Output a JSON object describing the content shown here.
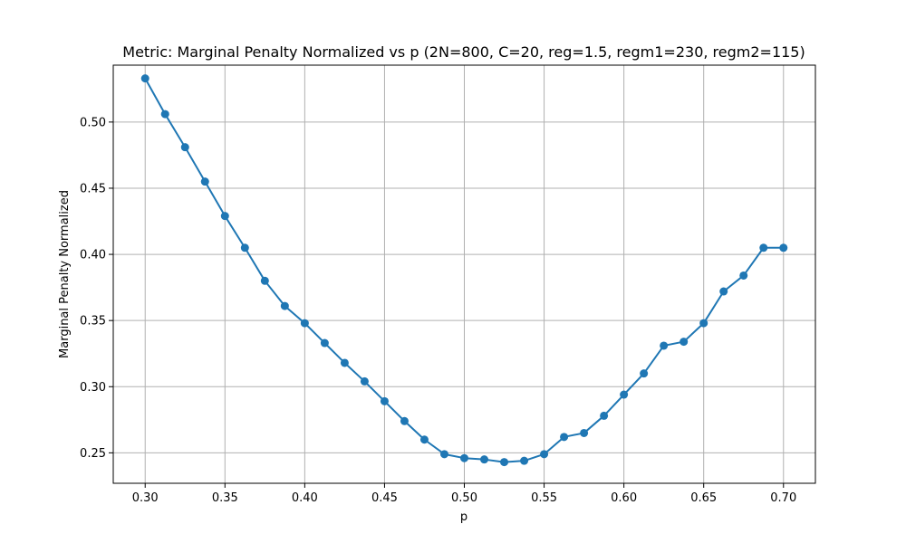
{
  "chart_data": {
    "type": "line",
    "title": "Metric: Marginal Penalty Normalized vs p (2N=800, C=20, reg=1.5, regm1=230, regm2=115)",
    "xlabel": "p",
    "ylabel": "Marginal Penalty Normalized",
    "xlim": [
      0.28,
      0.72
    ],
    "ylim": [
      0.227,
      0.543
    ],
    "xticks": [
      0.3,
      0.35,
      0.4,
      0.45,
      0.5,
      0.55,
      0.6,
      0.65,
      0.7
    ],
    "yticks": [
      0.25,
      0.3,
      0.35,
      0.4,
      0.45,
      0.5
    ],
    "xtick_labels": [
      "0.30",
      "0.35",
      "0.40",
      "0.45",
      "0.50",
      "0.55",
      "0.60",
      "0.65",
      "0.70"
    ],
    "ytick_labels": [
      "0.25",
      "0.30",
      "0.35",
      "0.40",
      "0.45",
      "0.50"
    ],
    "grid": true,
    "series": [
      {
        "name": "Marginal Penalty Normalized",
        "color": "#1f77b4",
        "marker": "circle",
        "x": [
          0.3,
          0.3125,
          0.325,
          0.3375,
          0.35,
          0.3625,
          0.375,
          0.3875,
          0.4,
          0.4125,
          0.425,
          0.4375,
          0.45,
          0.4625,
          0.475,
          0.4875,
          0.5,
          0.5125,
          0.525,
          0.5375,
          0.55,
          0.5625,
          0.575,
          0.5875,
          0.6,
          0.6125,
          0.625,
          0.6375,
          0.65,
          0.6625,
          0.675,
          0.6875,
          0.7
        ],
        "y": [
          0.533,
          0.506,
          0.481,
          0.455,
          0.429,
          0.405,
          0.38,
          0.361,
          0.348,
          0.333,
          0.318,
          0.304,
          0.289,
          0.274,
          0.26,
          0.249,
          0.246,
          0.245,
          0.243,
          0.244,
          0.249,
          0.262,
          0.265,
          0.278,
          0.294,
          0.31,
          0.331,
          0.334,
          0.348,
          0.372,
          0.384,
          0.405,
          0.405
        ]
      }
    ]
  },
  "colors": {
    "line": "#1f77b4",
    "grid": "#b0b0b0",
    "axis": "#000000",
    "background": "#ffffff"
  }
}
